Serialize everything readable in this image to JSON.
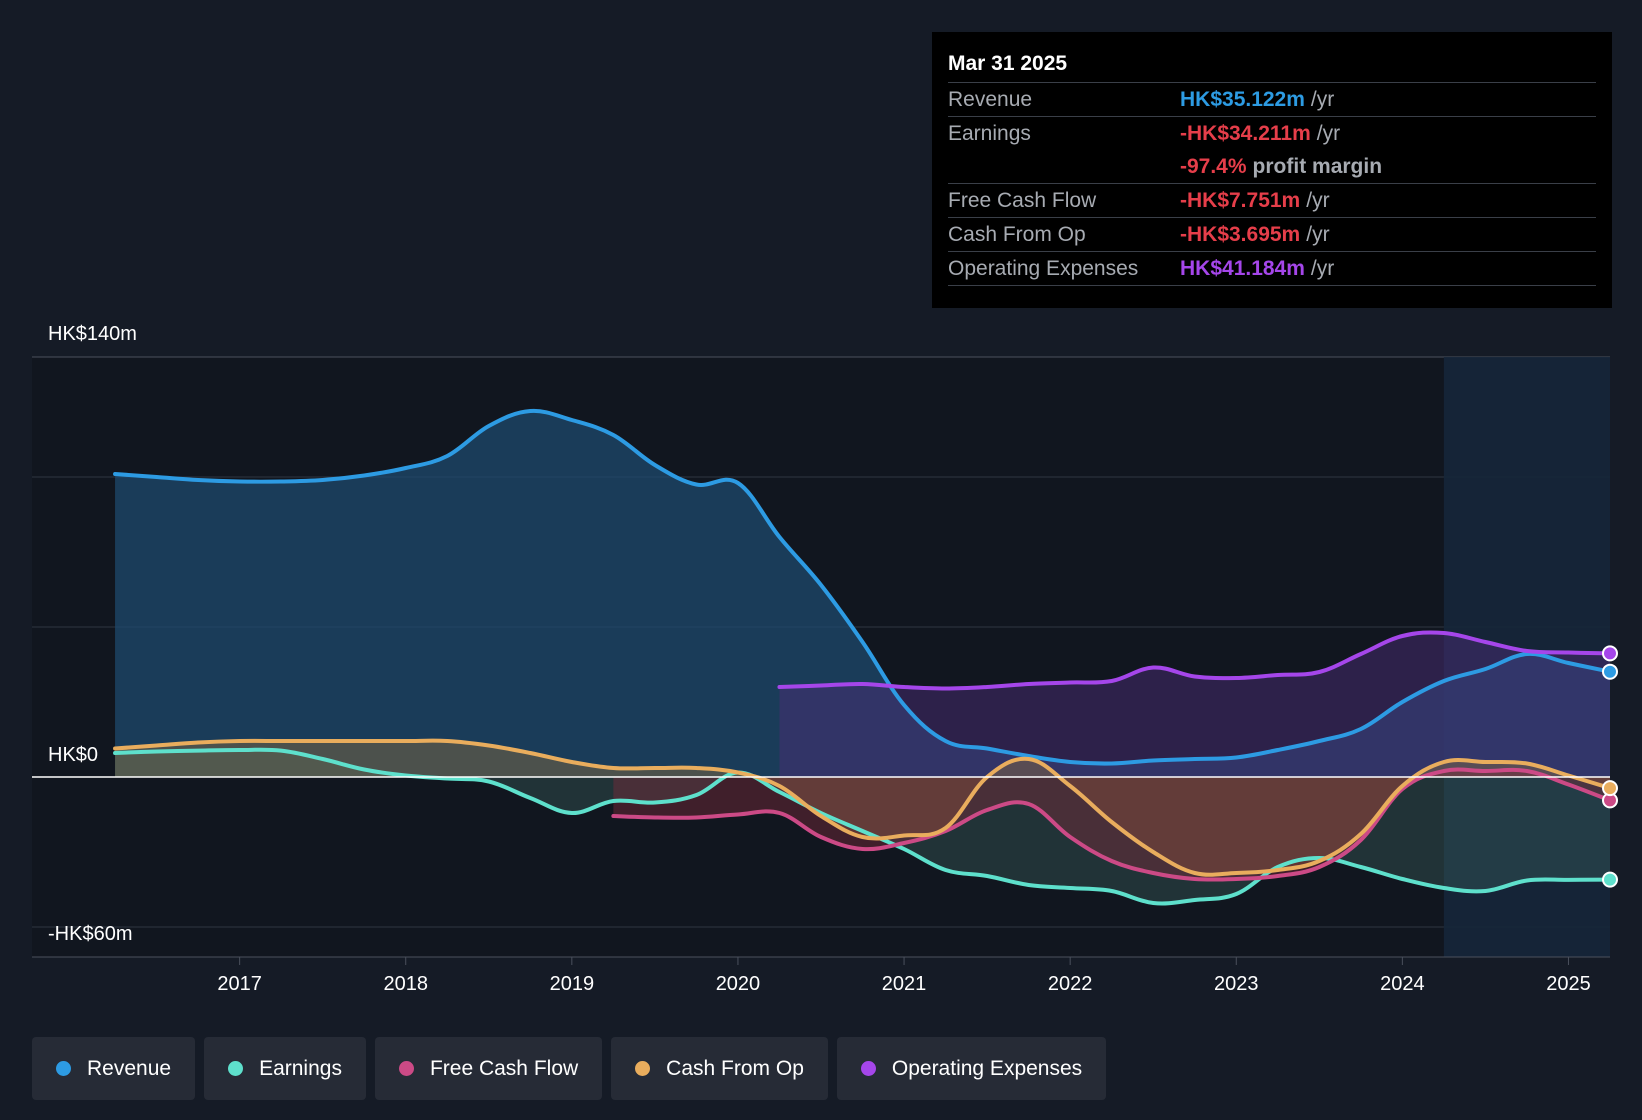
{
  "colors": {
    "background": "#151b26",
    "revenue": "#2d9be3",
    "earnings": "#5ee0cc",
    "free_cash_flow": "#cc4a86",
    "cash_from_op": "#e9ad5d",
    "operating_expenses": "#a546ea",
    "negative_value": "#e63e4a",
    "grid": "#2e3542"
  },
  "tooltip": {
    "date": "Mar 31 2025",
    "rows": [
      {
        "name": "Revenue",
        "value": "HK$35.122m",
        "unit": "/yr"
      },
      {
        "name": "Earnings",
        "value": "-HK$34.211m",
        "unit": "/yr"
      },
      {
        "name": "",
        "value": "-97.4%",
        "unit": "profit margin"
      },
      {
        "name": "Free Cash Flow",
        "value": "-HK$7.751m",
        "unit": "/yr"
      },
      {
        "name": "Cash From Op",
        "value": "-HK$3.695m",
        "unit": "/yr"
      },
      {
        "name": "Operating Expenses",
        "value": "HK$41.184m",
        "unit": "/yr"
      }
    ]
  },
  "legend": [
    {
      "label": "Revenue",
      "icon": "revenue-dot-icon"
    },
    {
      "label": "Earnings",
      "icon": "earnings-dot-icon"
    },
    {
      "label": "Free Cash Flow",
      "icon": "free-cash-flow-dot-icon"
    },
    {
      "label": "Cash From Op",
      "icon": "cash-from-op-dot-icon"
    },
    {
      "label": "Operating Expenses",
      "icon": "operating-expenses-dot-icon"
    }
  ],
  "chart_data": {
    "type": "area",
    "title": "",
    "xlabel": "",
    "ylabel": "",
    "ylim": [
      -60,
      140
    ],
    "xlim": [
      2015.75,
      2025.25
    ],
    "y_axis_labels": [
      "HK$140m",
      "HK$0",
      "-HK$60m"
    ],
    "y_axis_label_values": [
      140,
      0,
      -60
    ],
    "gridline_values": [
      140,
      100,
      50,
      0,
      -50
    ],
    "x_ticks": [
      2017,
      2018,
      2019,
      2020,
      2021,
      2022,
      2023,
      2024,
      2025
    ],
    "x_tick_labels": [
      "2017",
      "2018",
      "2019",
      "2020",
      "2021",
      "2022",
      "2023",
      "2024",
      "2025"
    ],
    "forecast_start": 2024.25,
    "series": [
      {
        "name": "Revenue",
        "key": "revenue",
        "x": [
          2016.25,
          2016.5,
          2016.75,
          2017.0,
          2017.25,
          2017.5,
          2017.75,
          2018.0,
          2018.25,
          2018.5,
          2018.75,
          2019.0,
          2019.25,
          2019.5,
          2019.75,
          2020.0,
          2020.25,
          2020.5,
          2020.75,
          2021.0,
          2021.25,
          2021.5,
          2021.75,
          2022.0,
          2022.25,
          2022.5,
          2022.75,
          2023.0,
          2023.25,
          2023.5,
          2023.75,
          2024.0,
          2024.25,
          2024.5,
          2024.75,
          2025.0,
          2025.25
        ],
        "values": [
          101,
          100,
          99,
          98.5,
          98.5,
          99,
          100.5,
          103,
          107,
          117,
          122,
          119,
          114,
          104,
          97.5,
          98,
          80,
          64,
          45,
          24,
          12,
          9.5,
          7,
          5,
          4.5,
          5.5,
          6,
          6.5,
          9,
          12,
          16,
          25,
          32,
          36,
          41,
          38,
          35.1
        ]
      },
      {
        "name": "Earnings",
        "key": "earnings",
        "x": [
          2016.25,
          2016.5,
          2016.75,
          2017.0,
          2017.25,
          2017.5,
          2017.75,
          2018.0,
          2018.25,
          2018.5,
          2018.75,
          2019.0,
          2019.25,
          2019.5,
          2019.75,
          2020.0,
          2020.25,
          2020.5,
          2020.75,
          2021.0,
          2021.25,
          2021.5,
          2021.75,
          2022.0,
          2022.25,
          2022.5,
          2022.75,
          2023.0,
          2023.25,
          2023.5,
          2023.75,
          2024.0,
          2024.25,
          2024.5,
          2024.75,
          2025.0,
          2025.25
        ],
        "values": [
          8,
          8.5,
          8.8,
          9,
          8.8,
          6,
          2.5,
          0.5,
          -0.5,
          -1.5,
          -7,
          -12,
          -8,
          -8.5,
          -6,
          1.5,
          -5,
          -12,
          -18,
          -24,
          -31,
          -33,
          -36,
          -37,
          -38,
          -42,
          -41,
          -39,
          -30,
          -27,
          -30,
          -34,
          -37,
          -38,
          -34.5,
          -34.3,
          -34.2
        ]
      },
      {
        "name": "Free Cash Flow",
        "key": "free_cash_flow",
        "x": [
          2019.25,
          2019.5,
          2019.75,
          2020.0,
          2020.25,
          2020.5,
          2020.75,
          2021.0,
          2021.25,
          2021.5,
          2021.75,
          2022.0,
          2022.25,
          2022.5,
          2022.75,
          2023.0,
          2023.25,
          2023.5,
          2023.75,
          2024.0,
          2024.25,
          2024.5,
          2024.75,
          2025.0,
          2025.25
        ],
        "values": [
          -13,
          -13.5,
          -13.5,
          -12.5,
          -12,
          -20,
          -24,
          -22,
          -18,
          -11,
          -9,
          -20,
          -28,
          -32,
          -34,
          -34,
          -33,
          -30,
          -21,
          -4,
          2,
          2,
          2,
          -2.5,
          -7.8
        ]
      },
      {
        "name": "Cash From Op",
        "key": "cash_from_op",
        "x": [
          2016.25,
          2016.5,
          2016.75,
          2017.0,
          2017.25,
          2017.5,
          2017.75,
          2018.0,
          2018.25,
          2018.5,
          2018.75,
          2019.0,
          2019.25,
          2019.5,
          2019.75,
          2020.0,
          2020.25,
          2020.5,
          2020.75,
          2021.0,
          2021.25,
          2021.5,
          2021.75,
          2022.0,
          2022.25,
          2022.5,
          2022.75,
          2023.0,
          2023.25,
          2023.5,
          2023.75,
          2024.0,
          2024.25,
          2024.5,
          2024.75,
          2025.0,
          2025.25
        ],
        "values": [
          9.5,
          10.5,
          11.5,
          12,
          12,
          12,
          12,
          12,
          12,
          10.5,
          8,
          5,
          3,
          3,
          3,
          1.5,
          -3,
          -13,
          -20,
          -19.5,
          -17,
          0,
          6,
          -3,
          -15,
          -25,
          -32,
          -32,
          -31,
          -28,
          -19,
          -3,
          5,
          5,
          4.5,
          0.5,
          -3.7
        ]
      },
      {
        "name": "Operating Expenses",
        "key": "operating_expenses",
        "x": [
          2020.25,
          2020.5,
          2020.75,
          2021.0,
          2021.25,
          2021.5,
          2021.75,
          2022.0,
          2022.25,
          2022.5,
          2022.75,
          2023.0,
          2023.25,
          2023.5,
          2023.75,
          2024.0,
          2024.25,
          2024.5,
          2024.75,
          2025.0,
          2025.25
        ],
        "values": [
          30,
          30.5,
          31,
          30,
          29.5,
          30,
          31,
          31.5,
          32,
          36.5,
          33.5,
          33,
          34,
          35,
          41,
          47,
          48,
          45,
          42,
          41.5,
          41.2
        ]
      }
    ]
  }
}
